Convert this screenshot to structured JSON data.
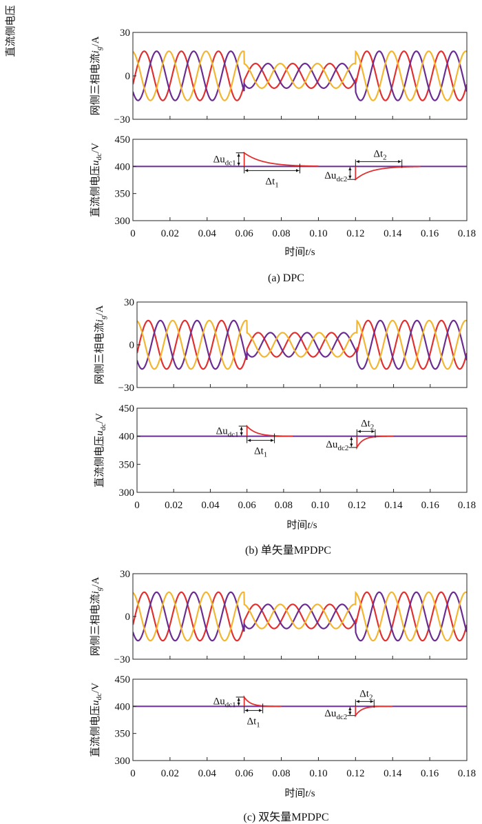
{
  "side_label": "直流侧电压",
  "chart_data": [
    {
      "type": "line",
      "panel": "a",
      "caption": "(a) DPC",
      "xlabel": "时间t/s",
      "x_ticks": [
        "0",
        "0.02",
        "0.04",
        "0.06",
        "0.08",
        "0.10",
        "0.12",
        "0.14",
        "0.16",
        "0.18"
      ],
      "xlim": [
        0,
        0.18
      ],
      "current": {
        "ylabel": "网侧三相电流i_g/A",
        "ylim": [
          -30,
          30
        ],
        "y_ticks": [
          "30",
          "0",
          "−30"
        ],
        "phase_colors": [
          "#e03030",
          "#6a2c91",
          "#f2b630"
        ],
        "frequency_hz": 50,
        "segments": [
          {
            "x": [
              0,
              0.06
            ],
            "amplitude": 17
          },
          {
            "x": [
              0.06,
              0.12
            ],
            "amplitude": 8.5
          },
          {
            "x": [
              0.12,
              0.18
            ],
            "amplitude": 17
          }
        ]
      },
      "voltage": {
        "ylabel": "直流侧电压u_dc/V",
        "ylim": [
          300,
          450
        ],
        "y_ticks": [
          "450",
          "400",
          "350",
          "300"
        ],
        "nominal": 400,
        "colors": {
          "flat": "#6a2c91",
          "transient": "#e03030"
        },
        "transients": [
          {
            "t": 0.06,
            "peak": 425,
            "settle": 0.09
          },
          {
            "t": 0.12,
            "peak": 376,
            "settle": 0.145
          }
        ]
      },
      "annotations": {
        "du1": "Δu",
        "du1_sub": "dc1",
        "dt1": "Δt",
        "dt1_sub": "1",
        "du2": "Δu",
        "du2_sub": "dc2",
        "dt2": "Δt",
        "dt2_sub": "2"
      }
    },
    {
      "type": "line",
      "panel": "b",
      "caption": "(b) 单矢量MPDPC",
      "xlabel": "时间t/s",
      "x_ticks": [
        "0",
        "0.02",
        "0.04",
        "0.06",
        "0.08",
        "0.10",
        "0.12",
        "0.14",
        "0.16",
        "0.18"
      ],
      "xlim": [
        0,
        0.18
      ],
      "current": {
        "ylabel": "网侧三相电流i_g/A",
        "ylim": [
          -30,
          30
        ],
        "y_ticks": [
          "30",
          "0",
          "−30"
        ],
        "phase_colors": [
          "#e03030",
          "#6a2c91",
          "#f2b630"
        ],
        "frequency_hz": 50,
        "segments": [
          {
            "x": [
              0,
              0.06
            ],
            "amplitude": 17
          },
          {
            "x": [
              0.06,
              0.12
            ],
            "amplitude": 8.5
          },
          {
            "x": [
              0.12,
              0.18
            ],
            "amplitude": 17
          }
        ]
      },
      "voltage": {
        "ylabel": "直流侧电压u_dc/V",
        "ylim": [
          300,
          450
        ],
        "y_ticks": [
          "450",
          "400",
          "350",
          "300"
        ],
        "nominal": 400,
        "colors": {
          "flat": "#6a2c91",
          "transient": "#e03030"
        },
        "transients": [
          {
            "t": 0.06,
            "peak": 418,
            "settle": 0.075
          },
          {
            "t": 0.12,
            "peak": 380,
            "settle": 0.13
          }
        ]
      },
      "annotations": {
        "du1": "Δu",
        "du1_sub": "dc1",
        "dt1": "Δt",
        "dt1_sub": "1",
        "du2": "Δu",
        "du2_sub": "dc2",
        "dt2": "Δt",
        "dt2_sub": "2"
      }
    },
    {
      "type": "line",
      "panel": "c",
      "caption": "(c) 双矢量MPDPC",
      "xlabel": "时间t/s",
      "x_ticks": [
        "0",
        "0.02",
        "0.04",
        "0.06",
        "0.08",
        "0.10",
        "0.12",
        "0.14",
        "0.16",
        "0.18"
      ],
      "xlim": [
        0,
        0.18
      ],
      "current": {
        "ylabel": "网侧三相电流i_g/A",
        "ylim": [
          -30,
          30
        ],
        "y_ticks": [
          "30",
          "0",
          "−30"
        ],
        "phase_colors": [
          "#e03030",
          "#6a2c91",
          "#f2b630"
        ],
        "frequency_hz": 50,
        "segments": [
          {
            "x": [
              0,
              0.06
            ],
            "amplitude": 17
          },
          {
            "x": [
              0.06,
              0.12
            ],
            "amplitude": 8.5
          },
          {
            "x": [
              0.12,
              0.18
            ],
            "amplitude": 17
          }
        ]
      },
      "voltage": {
        "ylabel": "直流侧电压u_dc/V",
        "ylim": [
          300,
          450
        ],
        "y_ticks": [
          "450",
          "400",
          "350",
          "300"
        ],
        "nominal": 400,
        "colors": {
          "flat": "#6a2c91",
          "transient": "#e03030"
        },
        "transients": [
          {
            "t": 0.06,
            "peak": 417,
            "settle": 0.07
          },
          {
            "t": 0.12,
            "peak": 383,
            "settle": 0.13
          }
        ]
      },
      "annotations": {
        "du1": "Δu",
        "du1_sub": "dc1",
        "dt1": "Δt",
        "dt1_sub": "1",
        "du2": "Δu",
        "du2_sub": "dc2",
        "dt2": "Δt",
        "dt2_sub": "2"
      }
    }
  ]
}
